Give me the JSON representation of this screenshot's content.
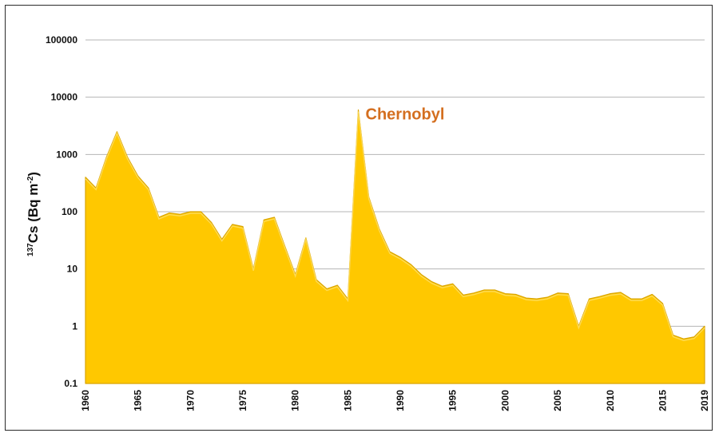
{
  "chart_data": {
    "type": "area",
    "yscale": "log",
    "ylim": [
      0.1,
      100000
    ],
    "yticks": [
      {
        "value": 0.1,
        "label": "0.1"
      },
      {
        "value": 1,
        "label": "1"
      },
      {
        "value": 10,
        "label": "10"
      },
      {
        "value": 100,
        "label": "100"
      },
      {
        "value": 1000,
        "label": "1000"
      },
      {
        "value": 10000,
        "label": "10000"
      },
      {
        "value": 100000,
        "label": "100000"
      }
    ],
    "xlim": [
      1960,
      2019
    ],
    "xticks": [
      {
        "value": 1960,
        "label": "1960"
      },
      {
        "value": 1965,
        "label": "1965"
      },
      {
        "value": 1970,
        "label": "1970"
      },
      {
        "value": 1975,
        "label": "1975"
      },
      {
        "value": 1980,
        "label": "1980"
      },
      {
        "value": 1985,
        "label": "1985"
      },
      {
        "value": 1990,
        "label": "1990"
      },
      {
        "value": 1995,
        "label": "1995"
      },
      {
        "value": 2000,
        "label": "2000"
      },
      {
        "value": 2005,
        "label": "2005"
      },
      {
        "value": 2010,
        "label": "2010"
      },
      {
        "value": 2015,
        "label": "2015"
      },
      {
        "value": 2019,
        "label": "2019"
      }
    ],
    "ylabel": {
      "pre_sup": "137",
      "main": "Cs (Bq m",
      "sup": "-2",
      "post": ")"
    },
    "grid": "horizontal",
    "fill_color": "#FFC800",
    "edge_color": "#D9A400",
    "annotation": {
      "text": "Chernobyl",
      "year": 1986,
      "color": "#D46F20"
    },
    "series": [
      {
        "name": "137Cs",
        "x": [
          1960,
          1961,
          1962,
          1963,
          1964,
          1965,
          1966,
          1967,
          1968,
          1969,
          1970,
          1971,
          1972,
          1973,
          1974,
          1975,
          1976,
          1977,
          1978,
          1979,
          1980,
          1981,
          1982,
          1983,
          1984,
          1985,
          1986,
          1987,
          1988,
          1989,
          1990,
          1991,
          1992,
          1993,
          1994,
          1995,
          1996,
          1997,
          1998,
          1999,
          2000,
          2001,
          2002,
          2003,
          2004,
          2005,
          2006,
          2007,
          2008,
          2009,
          2010,
          2011,
          2012,
          2013,
          2014,
          2015,
          2016,
          2017,
          2018,
          2019
        ],
        "values": [
          400,
          260,
          900,
          2500,
          900,
          420,
          260,
          80,
          95,
          90,
          100,
          100,
          65,
          33,
          60,
          55,
          10,
          72,
          80,
          25,
          8,
          35,
          6.5,
          4.5,
          5.2,
          3,
          6000,
          180,
          50,
          20,
          16,
          12,
          8,
          6,
          5,
          5.5,
          3.5,
          3.8,
          4.3,
          4.3,
          3.7,
          3.6,
          3.1,
          3,
          3.2,
          3.8,
          3.7,
          1,
          3,
          3.3,
          3.7,
          3.9,
          3,
          3,
          3.6,
          2.5,
          0.7,
          0.6,
          0.65,
          1
        ]
      }
    ]
  }
}
